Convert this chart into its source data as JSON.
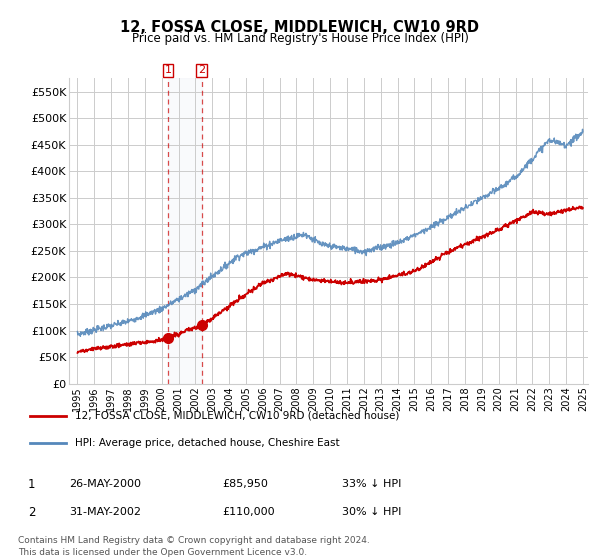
{
  "title": "12, FOSSA CLOSE, MIDDLEWICH, CW10 9RD",
  "subtitle": "Price paid vs. HM Land Registry's House Price Index (HPI)",
  "red_line_label": "12, FOSSA CLOSE, MIDDLEWICH, CW10 9RD (detached house)",
  "blue_line_label": "HPI: Average price, detached house, Cheshire East",
  "transaction1_date": "26-MAY-2000",
  "transaction1_price": "£85,950",
  "transaction1_hpi": "33% ↓ HPI",
  "transaction2_date": "31-MAY-2002",
  "transaction2_price": "£110,000",
  "transaction2_hpi": "30% ↓ HPI",
  "footnote1": "Contains HM Land Registry data © Crown copyright and database right 2024.",
  "footnote2": "This data is licensed under the Open Government Licence v3.0.",
  "ylim_top": 575000,
  "yticks": [
    0,
    50000,
    100000,
    150000,
    200000,
    250000,
    300000,
    350000,
    400000,
    450000,
    500000,
    550000
  ],
  "ytick_labels": [
    "£0",
    "£50K",
    "£100K",
    "£150K",
    "£200K",
    "£250K",
    "£300K",
    "£350K",
    "£400K",
    "£450K",
    "£500K",
    "£550K"
  ],
  "background_color": "#ffffff",
  "grid_color": "#cccccc",
  "red_color": "#cc0000",
  "blue_color": "#5588bb",
  "t1_year": 2000.37,
  "t2_year": 2002.37,
  "t1_price": 85950,
  "t2_price": 110000,
  "xmin": 1994.5,
  "xmax": 2025.3
}
